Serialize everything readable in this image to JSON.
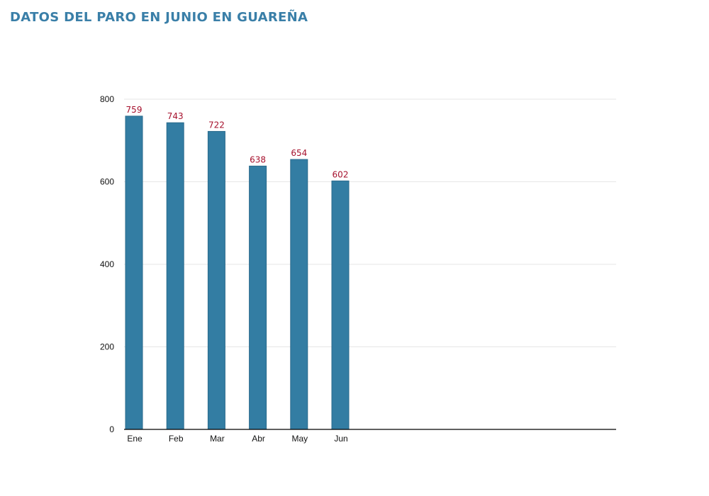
{
  "title": "DATOS DEL PARO EN JUNIO EN GUAREÑA",
  "colors": {
    "title": "#3a7fa8",
    "bar": "#337da3",
    "bar_edge": "#2a6a8c",
    "data_label": "#a6112d",
    "grid": "#e6e6e6",
    "axis": "#000000"
  },
  "chart_data": {
    "type": "bar",
    "title": "DATOS DEL PARO EN JUNIO EN GUAREÑA",
    "xlabel": "",
    "ylabel": "",
    "categories": [
      "Ene",
      "Feb",
      "Mar",
      "Abr",
      "May",
      "Jun"
    ],
    "values": [
      759,
      743,
      722,
      638,
      654,
      602
    ],
    "ylim": [
      0,
      800
    ],
    "yticks": [
      0,
      200,
      400,
      600,
      800
    ],
    "grid": true,
    "data_labels": true
  }
}
